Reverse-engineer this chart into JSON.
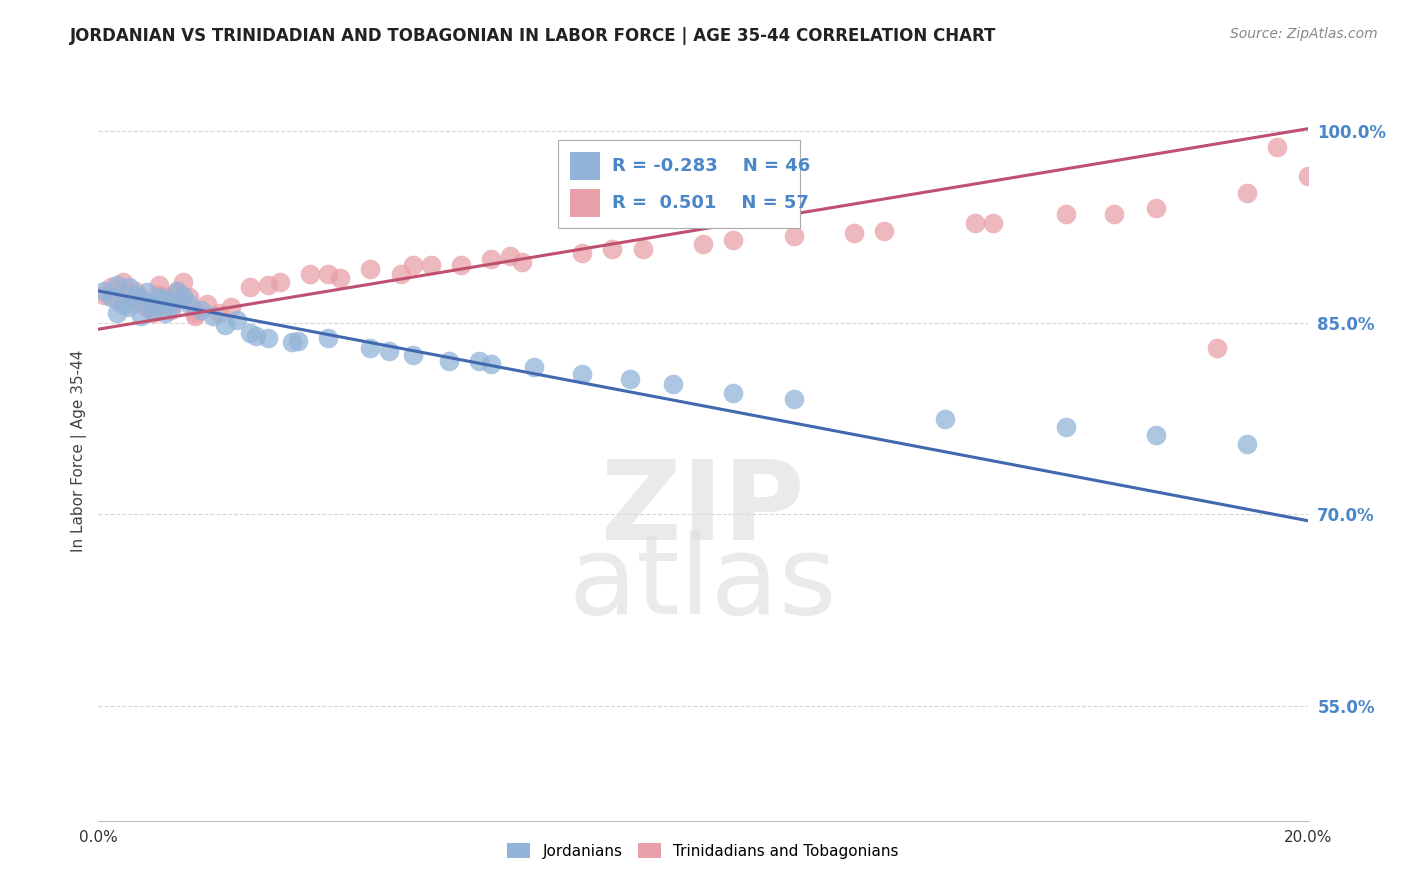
{
  "title": "JORDANIAN VS TRINIDADIAN AND TOBAGONIAN IN LABOR FORCE | AGE 35-44 CORRELATION CHART",
  "source_text": "Source: ZipAtlas.com",
  "ylabel": "In Labor Force | Age 35-44",
  "xmin": 0.0,
  "xmax": 0.2,
  "ymin": 0.46,
  "ymax": 1.04,
  "ytick_vals": [
    0.55,
    0.7,
    0.85,
    1.0
  ],
  "ytick_labels": [
    "55.0%",
    "70.0%",
    "85.0%",
    "100.0%"
  ],
  "xtick_vals": [
    0.0,
    0.2
  ],
  "xtick_labels": [
    "0.0%",
    "20.0%"
  ],
  "grid_color": "#cccccc",
  "blue_color": "#92b4d8",
  "pink_color": "#e8a0a8",
  "blue_line_color": "#4169b0",
  "pink_line_color": "#c05070",
  "legend_R_blue": "-0.283",
  "legend_N_blue": "46",
  "legend_R_pink": "0.501",
  "legend_N_pink": "57",
  "blue_line_x": [
    0.0,
    0.2
  ],
  "blue_line_y": [
    0.875,
    0.695
  ],
  "pink_line_x": [
    0.0,
    0.2
  ],
  "pink_line_y": [
    0.845,
    1.002
  ],
  "blue_x": [
    0.001,
    0.002,
    0.003,
    0.004,
    0.005,
    0.006,
    0.007,
    0.008,
    0.009,
    0.01,
    0.011,
    0.012,
    0.013,
    0.014,
    0.003,
    0.005,
    0.007,
    0.009,
    0.011,
    0.015,
    0.017,
    0.019,
    0.021,
    0.023,
    0.025,
    0.028,
    0.032,
    0.038,
    0.045,
    0.052,
    0.058,
    0.065,
    0.072,
    0.08,
    0.088,
    0.095,
    0.105,
    0.115,
    0.14,
    0.16,
    0.175,
    0.19,
    0.026,
    0.033,
    0.048,
    0.063
  ],
  "blue_y": [
    0.875,
    0.87,
    0.88,
    0.865,
    0.878,
    0.872,
    0.868,
    0.874,
    0.865,
    0.87,
    0.868,
    0.862,
    0.875,
    0.871,
    0.858,
    0.862,
    0.855,
    0.86,
    0.858,
    0.865,
    0.86,
    0.855,
    0.848,
    0.852,
    0.842,
    0.838,
    0.835,
    0.838,
    0.83,
    0.825,
    0.82,
    0.818,
    0.815,
    0.81,
    0.806,
    0.802,
    0.795,
    0.79,
    0.775,
    0.768,
    0.762,
    0.755,
    0.84,
    0.836,
    0.828,
    0.82
  ],
  "pink_x": [
    0.001,
    0.002,
    0.003,
    0.004,
    0.005,
    0.006,
    0.007,
    0.008,
    0.009,
    0.01,
    0.011,
    0.012,
    0.013,
    0.014,
    0.015,
    0.016,
    0.004,
    0.006,
    0.008,
    0.01,
    0.012,
    0.014,
    0.016,
    0.018,
    0.02,
    0.022,
    0.025,
    0.03,
    0.035,
    0.04,
    0.045,
    0.05,
    0.055,
    0.06,
    0.065,
    0.07,
    0.08,
    0.09,
    0.1,
    0.115,
    0.13,
    0.145,
    0.16,
    0.175,
    0.19,
    0.2,
    0.028,
    0.038,
    0.052,
    0.068,
    0.085,
    0.105,
    0.125,
    0.148,
    0.168,
    0.185,
    0.195
  ],
  "pink_y": [
    0.872,
    0.878,
    0.868,
    0.882,
    0.865,
    0.875,
    0.87,
    0.862,
    0.858,
    0.88,
    0.87,
    0.865,
    0.875,
    0.882,
    0.87,
    0.858,
    0.876,
    0.868,
    0.862,
    0.872,
    0.86,
    0.87,
    0.855,
    0.865,
    0.858,
    0.862,
    0.878,
    0.882,
    0.888,
    0.885,
    0.892,
    0.888,
    0.895,
    0.895,
    0.9,
    0.898,
    0.905,
    0.908,
    0.912,
    0.918,
    0.922,
    0.928,
    0.935,
    0.94,
    0.952,
    0.965,
    0.88,
    0.888,
    0.895,
    0.902,
    0.908,
    0.915,
    0.92,
    0.928,
    0.935,
    0.83,
    0.988
  ]
}
